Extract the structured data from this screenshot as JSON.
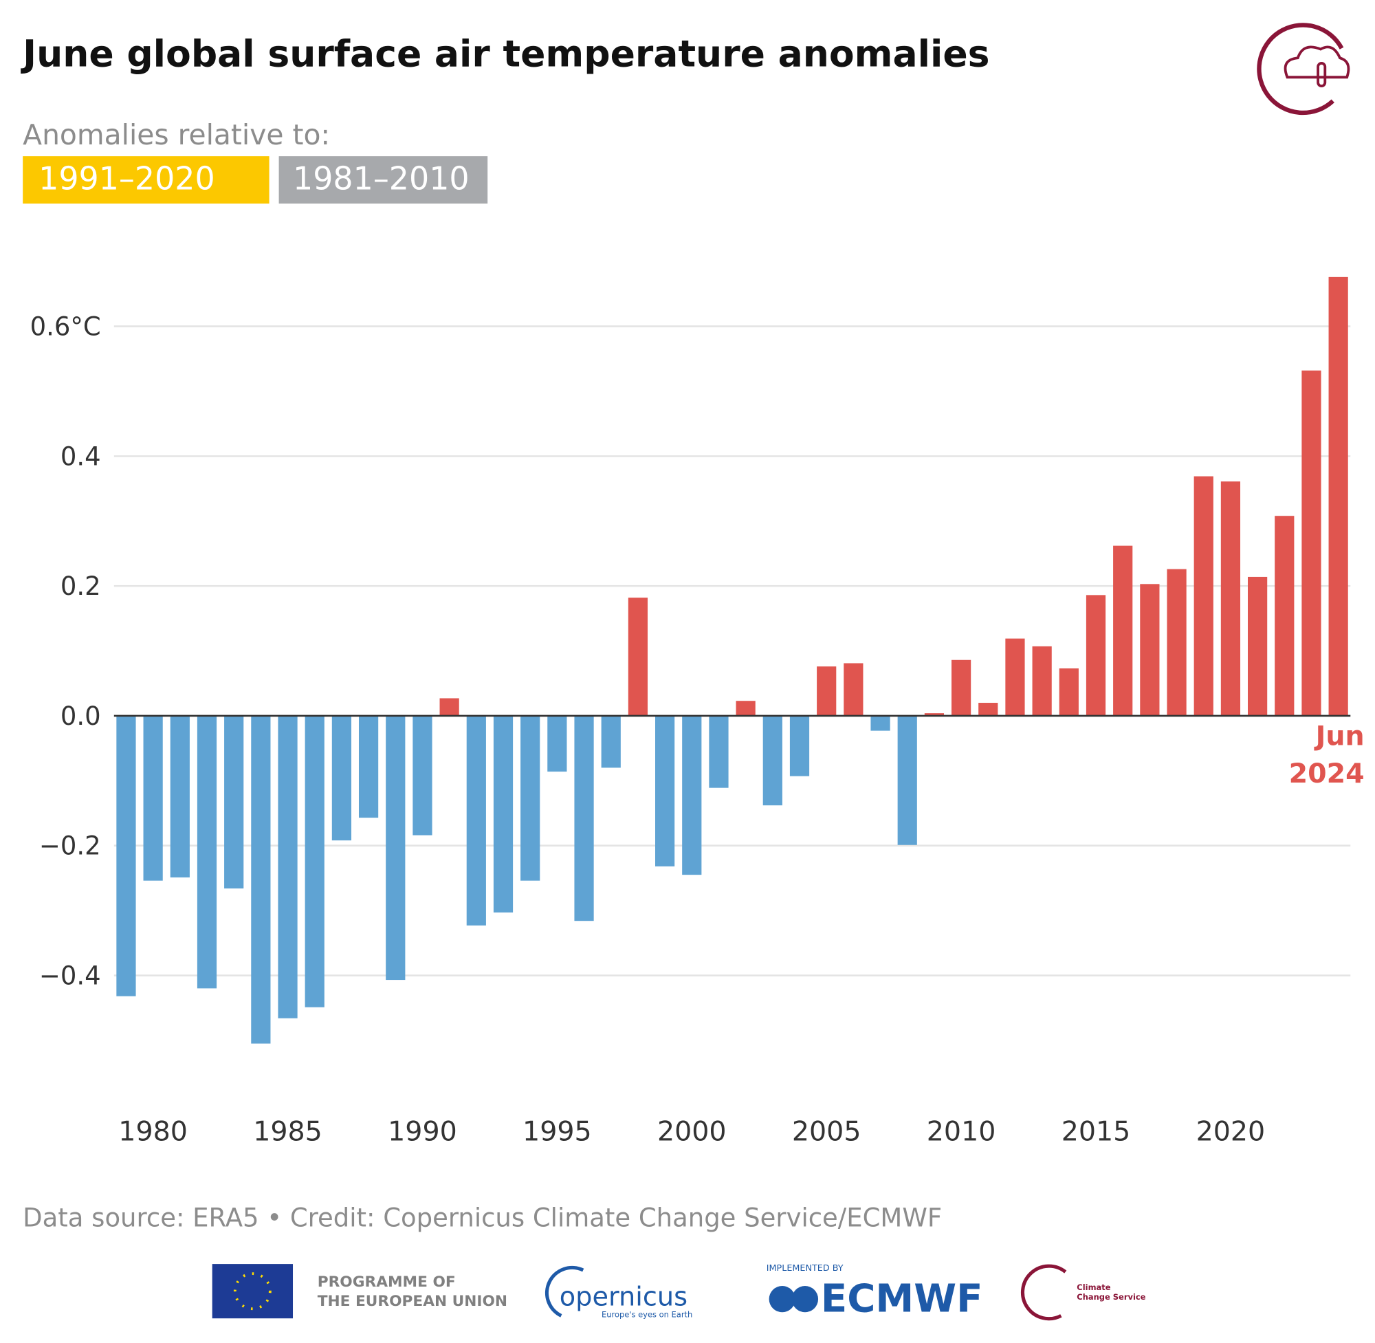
{
  "header": {
    "title": "June global surface air temperature anomalies",
    "subtitle": "Anomalies relative to:",
    "baselines": [
      "1991–2020",
      "1981–2010"
    ]
  },
  "chart_data": {
    "type": "bar",
    "x": [
      1979,
      1980,
      1981,
      1982,
      1983,
      1984,
      1985,
      1986,
      1987,
      1988,
      1989,
      1990,
      1991,
      1992,
      1993,
      1994,
      1995,
      1996,
      1997,
      1998,
      1999,
      2000,
      2001,
      2002,
      2003,
      2004,
      2005,
      2006,
      2007,
      2008,
      2009,
      2010,
      2011,
      2012,
      2013,
      2014,
      2015,
      2016,
      2017,
      2018,
      2019,
      2020,
      2021,
      2022,
      2023,
      2024
    ],
    "values": [
      -0.432,
      -0.254,
      -0.249,
      -0.42,
      -0.266,
      -0.505,
      -0.466,
      -0.449,
      -0.192,
      -0.157,
      -0.407,
      -0.184,
      0.027,
      -0.323,
      -0.303,
      -0.254,
      -0.086,
      -0.316,
      -0.08,
      0.182,
      -0.232,
      -0.245,
      -0.111,
      0.023,
      -0.138,
      -0.093,
      0.076,
      0.081,
      -0.023,
      -0.199,
      0.004,
      0.086,
      0.02,
      0.119,
      0.107,
      0.073,
      0.186,
      0.262,
      0.203,
      0.226,
      0.369,
      0.361,
      0.214,
      0.308,
      0.532,
      0.676
    ],
    "colors": {
      "positive": "#e0554f",
      "negative": "#5fa3d3"
    },
    "xlim": [
      1978.55,
      2024.45
    ],
    "xticks": [
      1980,
      1985,
      1990,
      1995,
      2000,
      2005,
      2010,
      2015,
      2020
    ],
    "ylim": [
      -0.56,
      0.7
    ],
    "yticks": [
      {
        "value": -0.4,
        "label": "−0.4"
      },
      {
        "value": -0.2,
        "label": "−0.2"
      },
      {
        "value": 0,
        "label": "0.0"
      },
      {
        "value": 0.2,
        "label": "0.2"
      },
      {
        "value": 0.4,
        "label": "0.4"
      },
      {
        "value": 0.6,
        "label": "0.6°C"
      }
    ],
    "grid": true,
    "annotation": [
      "Jun",
      "2024"
    ]
  },
  "footer": {
    "source": "Data source: ERA5 • Credit: Copernicus Climate Change Service/ECMWF",
    "logos": {
      "eu": [
        "PROGRAMME OF",
        "THE EUROPEAN UNION"
      ],
      "copernicus": "opernicus",
      "copernicus_tagline": "Europe's eyes on Earth",
      "implemented": "IMPLEMENTED BY",
      "ecmwf": "ECMWF",
      "c3s": [
        "Climate",
        "Change Service"
      ]
    }
  }
}
